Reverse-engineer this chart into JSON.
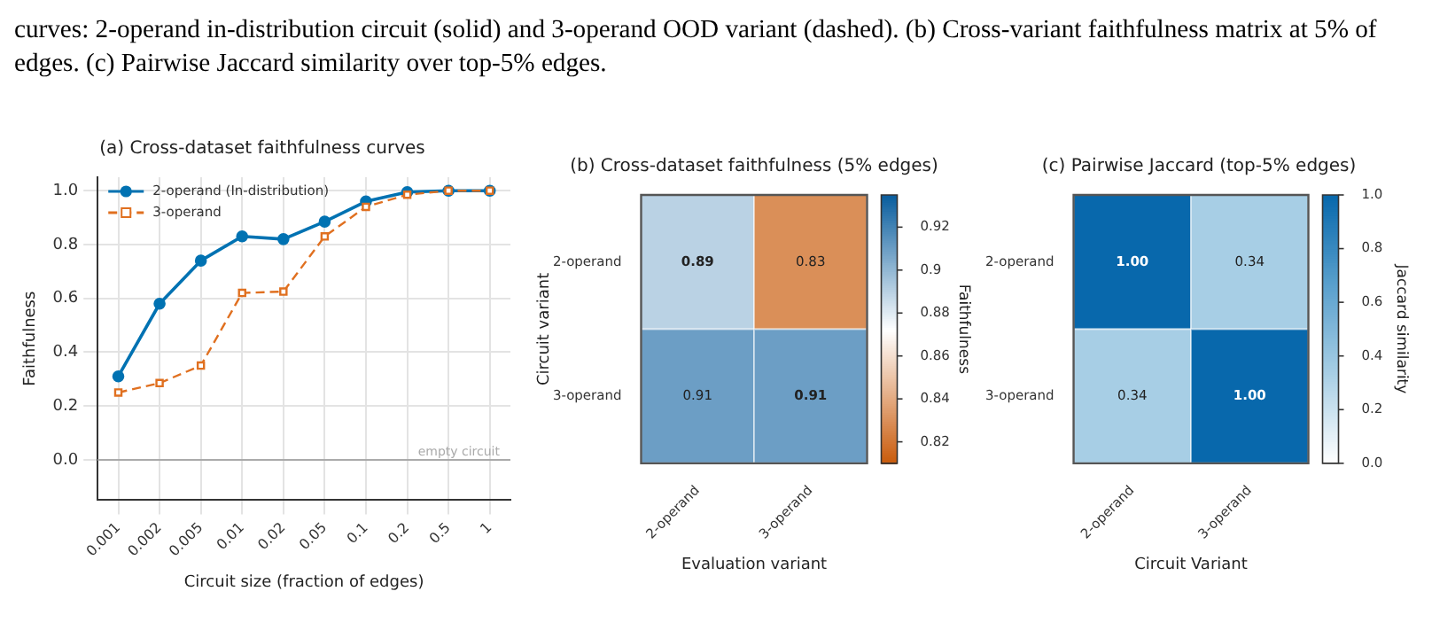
{
  "chart_data": [
    {
      "type": "line",
      "title": "(a) Cross-dataset faithfulness curves",
      "xlabel": "Circuit size (fraction of edges)",
      "ylabel": "Faithfulness",
      "annotations": [
        "curves: 2-operand in-distribution circuit (solid) and 3-operand OOD variant (dashed). (b) Cross-variant faithfulness matrix at 5% of edges. (c) Pairwise Jaccard similarity over top-5% edges."
      ],
      "categories": [
        "0.001",
        "0.002",
        "0.005",
        "0.01",
        "0.02",
        "0.05",
        "0.1",
        "0.2",
        "0.5",
        "1"
      ],
      "series": [
        {
          "name": "2-operand (In-distribution)",
          "color": "#0072b2",
          "marker": "circle",
          "line_style": "solid",
          "values": [
            0.31,
            0.58,
            0.74,
            0.83,
            0.82,
            0.885,
            0.96,
            0.995,
            1.0,
            1.0
          ]
        },
        {
          "name": "3-operand",
          "color": "#e07020",
          "marker": "square",
          "line_style": "dashed",
          "values": [
            0.25,
            0.285,
            0.35,
            0.62,
            0.625,
            0.83,
            0.94,
            0.985,
            1.0,
            1.0
          ]
        }
      ],
      "ylim": [
        -0.15,
        1.05
      ],
      "yticks": [
        {
          "value": 0,
          "label": "0.0"
        },
        {
          "value": 0.2,
          "label": "0.2"
        },
        {
          "value": 0.4,
          "label": "0.4"
        },
        {
          "value": 0.6,
          "label": "0.6"
        },
        {
          "value": 0.8,
          "label": "0.8"
        },
        {
          "value": 1,
          "label": "1.0"
        }
      ],
      "ref_lines": [
        {
          "axis": "y",
          "value": 0,
          "label": "empty circuit",
          "color": "#aaaaaa"
        }
      ],
      "grid": true,
      "legend": "top left"
    },
    {
      "type": "heatmap",
      "title": "(b) Cross-dataset faithfulness (5% edges)",
      "xlabel": "Evaluation variant",
      "ylabel": "Circuit variant",
      "clabel": "Faithfulness",
      "categories": [
        "2-operand",
        "3-operand"
      ],
      "y_categories": [
        "2-operand",
        "3-operand"
      ],
      "cells": [
        [
          0.89,
          0.83
        ],
        [
          0.91,
          0.91
        ]
      ],
      "clim": [
        0.81,
        0.935
      ],
      "cticks": [
        0.82,
        0.84,
        0.86,
        0.88,
        0.9,
        0.92
      ],
      "colors": [
        "#c95a0a",
        "#ffffff",
        "#0a5e9e"
      ],
      "data_labels": true
    },
    {
      "type": "heatmap",
      "title": "(c) Pairwise Jaccard (top-5% edges)",
      "xlabel": "Circuit Variant",
      "clabel": "Jaccard similarity",
      "categories": [
        "2-operand",
        "3-operand"
      ],
      "y_categories": [
        "2-operand",
        "3-operand"
      ],
      "cells": [
        [
          1.0,
          0.34
        ],
        [
          0.34,
          1.0
        ]
      ],
      "cell_labels": [
        [
          "1.00",
          "0.34"
        ],
        [
          "0.34",
          "1.00"
        ]
      ],
      "clim": [
        0,
        1
      ],
      "cticks": [
        {
          "value": 0,
          "label": "0.0"
        },
        0.2,
        0.4,
        0.6,
        0.8,
        {
          "value": 1,
          "label": "1.0"
        }
      ],
      "colors": [
        "#ffffff",
        "#a9cfe5",
        "#5aa0cd",
        "#0868ac"
      ],
      "data_labels": true
    }
  ]
}
